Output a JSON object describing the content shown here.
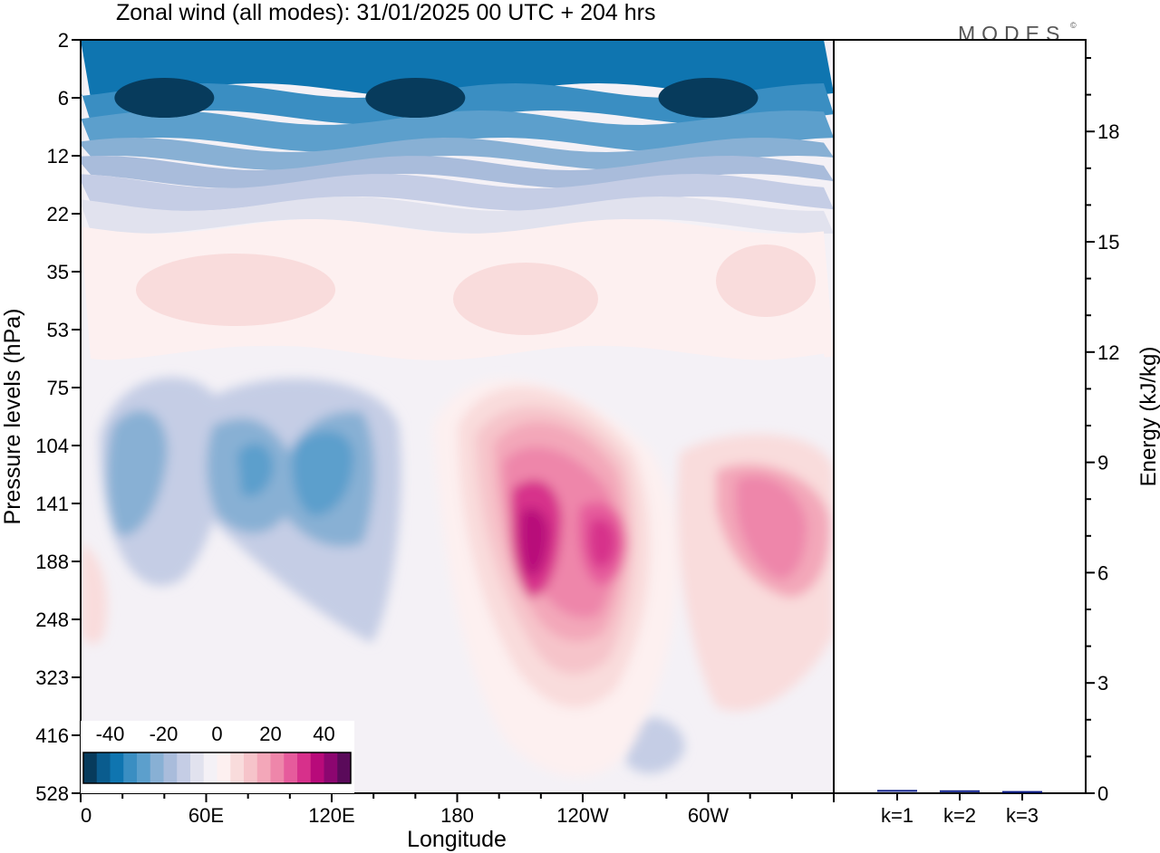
{
  "title": "Zonal wind (all modes):  31/01/2025  00 UTC  + 204 hrs",
  "logo": "MODES",
  "logo_mark": "©",
  "colors": {
    "scale": [
      "#073b5c",
      "#0a5c8e",
      "#0f75b0",
      "#3a8ec2",
      "#5c9fcc",
      "#88b0d4",
      "#a9bcdb",
      "#c5cde5",
      "#e1e2ee",
      "#f4f1f6",
      "#fdf0f0",
      "#f9dcdc",
      "#f6c4ca",
      "#f3a7b9",
      "#ee86aa",
      "#e65b9c",
      "#d7308b",
      "#b80a7a",
      "#8c0670",
      "#5a0a5a"
    ],
    "bar": "#0c1d8a"
  },
  "chart_data": [
    {
      "type": "heatmap",
      "title": "Zonal wind (all modes):  31/01/2025  00 UTC  + 204 hrs",
      "xlabel": "Longitude",
      "ylabel": "Pressure levels (hPa)",
      "x_ticks": [
        "0",
        "60E",
        "120E",
        "180",
        "120W",
        "60W"
      ],
      "y_ticks": [
        "2",
        "6",
        "12",
        "22",
        "35",
        "53",
        "75",
        "104",
        "141",
        "188",
        "248",
        "323",
        "416",
        "528"
      ],
      "colorbar_labels": [
        "-40",
        "-20",
        "0",
        "20",
        "40"
      ],
      "colorbar_range": [
        -50,
        50
      ],
      "features": [
        {
          "kind": "easterly",
          "lon": 40,
          "level": "6",
          "speed": -45
        },
        {
          "kind": "easterly",
          "lon": 160,
          "level": "6",
          "speed": -48
        },
        {
          "kind": "easterly",
          "lon": 300,
          "level": "6",
          "speed": -44
        },
        {
          "kind": "easterly",
          "lon": 25,
          "level": "141",
          "speed": -20
        },
        {
          "kind": "easterly",
          "lon": 80,
          "level": "141",
          "speed": -25
        },
        {
          "kind": "easterly",
          "lon": 108,
          "level": "141",
          "speed": -28
        },
        {
          "kind": "westerly",
          "lon": 218,
          "level": "188",
          "speed": 45
        },
        {
          "kind": "westerly",
          "lon": 255,
          "level": "188",
          "speed": 38
        },
        {
          "kind": "westerly",
          "lon": 340,
          "level": "188",
          "speed": 28
        },
        {
          "kind": "westerly",
          "lon": 5,
          "level": "248",
          "speed": 8
        }
      ]
    },
    {
      "type": "bar",
      "categories": [
        "k=1",
        "k=2",
        "k=3"
      ],
      "values": [
        0.04,
        0.03,
        0.01
      ],
      "ylabel": "Energy (kJ/kg)",
      "ylim": [
        0,
        20
      ],
      "y_ticks": [
        "0",
        "3",
        "6",
        "9",
        "12",
        "15",
        "18"
      ]
    }
  ]
}
